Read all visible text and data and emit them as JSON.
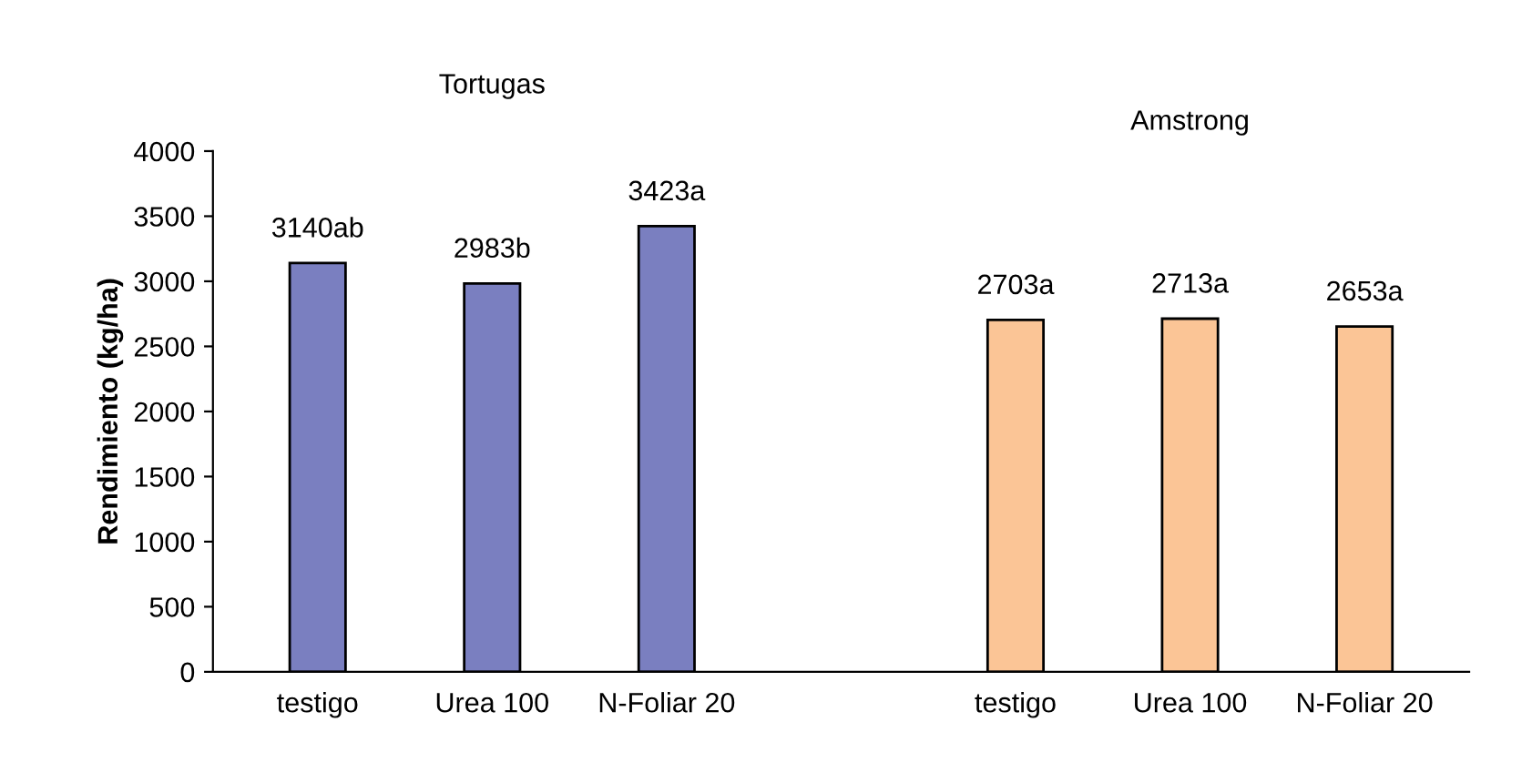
{
  "chart_data": {
    "type": "bar",
    "ylabel": "Rendimiento (kg/ha)",
    "categories": [
      "testigo",
      "Urea 100",
      "N-Foliar 20",
      null,
      "testigo",
      "Urea 100",
      "N-Foliar 20"
    ],
    "values": [
      3140,
      2983,
      3423,
      null,
      2703,
      2713,
      2653
    ],
    "colors": [
      "#7a7fc0",
      "#7a7fc0",
      "#7a7fc0",
      null,
      "#fbc596",
      "#fbc596",
      "#fbc596"
    ],
    "value_labels": [
      "3140ab",
      "2983b",
      "3423a",
      null,
      "2703a",
      "2713a",
      "2653a"
    ],
    "annotations": [
      "Tortugas",
      "Amstrong"
    ],
    "ylim": [
      0,
      4000
    ],
    "yticks": [
      0,
      500,
      1000,
      1500,
      2000,
      2500,
      3000,
      3500,
      4000
    ],
    "grid": false,
    "legend": false
  }
}
